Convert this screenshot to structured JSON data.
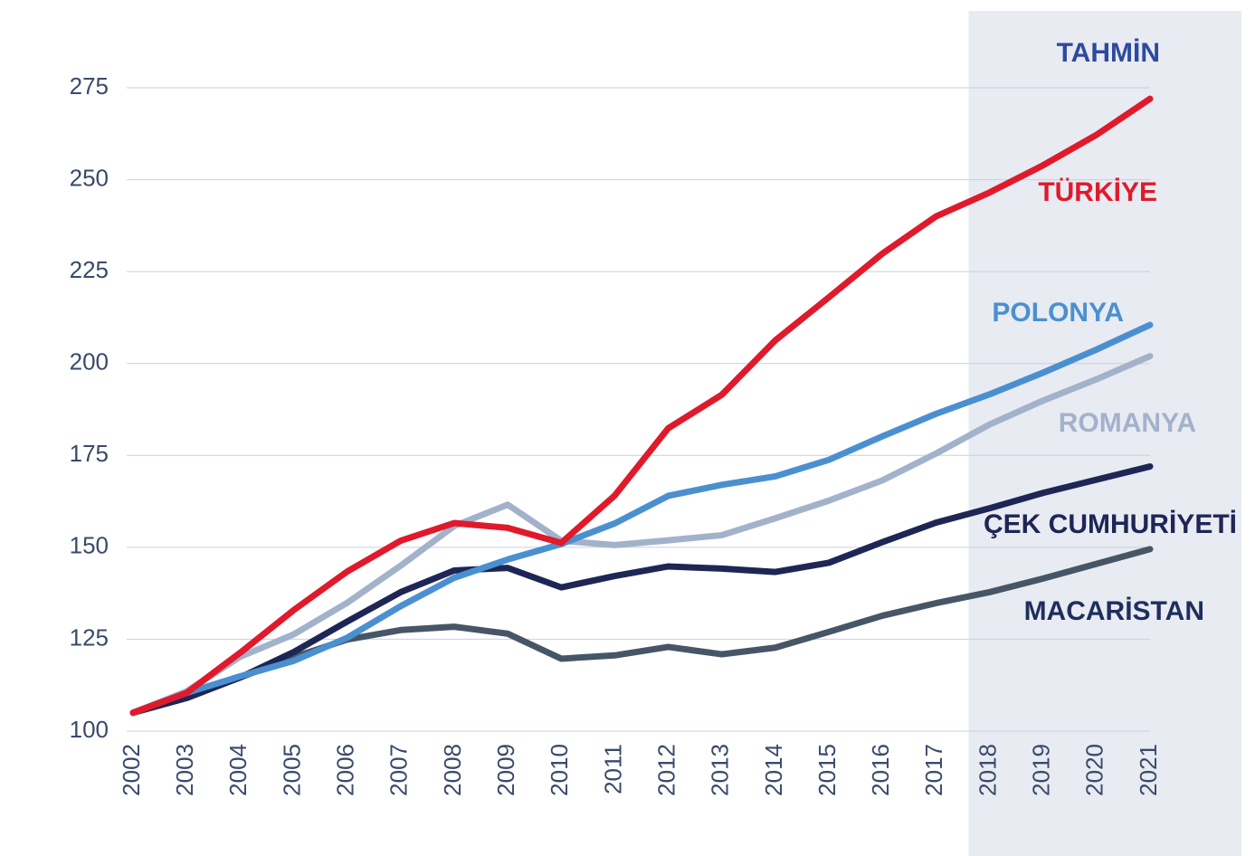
{
  "chart_data": {
    "type": "line",
    "categories": [
      "2002",
      "2003",
      "2004",
      "2005",
      "2006",
      "2007",
      "2008",
      "2009",
      "2010",
      "2011",
      "2012",
      "2013",
      "2014",
      "2015",
      "2016",
      "2017",
      "2018",
      "2019",
      "2020",
      "2021"
    ],
    "forecast_label": "TAHMİN",
    "forecast_from": "2018",
    "forecast_color": "#e8ebf2",
    "ylim": [
      100,
      275
    ],
    "yticks": [
      100,
      125,
      150,
      175,
      200,
      225,
      250,
      275
    ],
    "grid": true,
    "series": [
      {
        "name": "TÜRKİYE",
        "color": "#e01a2b",
        "values": [
          105,
          110.4,
          121.3,
          132.9,
          143.4,
          151.8,
          156.6,
          155.3,
          151.2,
          164.1,
          182.4,
          191.5,
          206.3,
          218,
          229.9,
          240,
          246.5,
          253.9,
          262.2,
          272
        ]
      },
      {
        "name": "POLONYA",
        "color": "#4a90d0",
        "values": [
          105,
          110.4,
          114.9,
          119.1,
          125.4,
          134,
          141.7,
          146.7,
          150.9,
          156.5,
          164,
          167,
          169.3,
          173.8,
          180.2,
          186.3,
          191.6,
          197.5,
          203.8,
          210.5
        ]
      },
      {
        "name": "ROMANYA",
        "color": "#a3b2cb",
        "values": [
          105,
          110.8,
          120.2,
          126.3,
          134.9,
          145,
          155.8,
          161.6,
          151.8,
          150.6,
          151.9,
          153.3,
          157.9,
          162.7,
          168.2,
          175.5,
          183.4,
          189.9,
          195.7,
          202
        ]
      },
      {
        "name": "ÇEK CUMHURİYETİ",
        "color": "#1e2655",
        "values": [
          105,
          109,
          114.6,
          121.5,
          129.8,
          137.8,
          143.7,
          144.4,
          139.1,
          142.2,
          144.8,
          144.2,
          143.3,
          145.8,
          151.4,
          156.7,
          160.6,
          164.8,
          168.4,
          172
        ]
      },
      {
        "name": "MACARİSTAN",
        "color": "#465666",
        "values": [
          105,
          109,
          114.6,
          120.1,
          124.9,
          127.5,
          128.4,
          126.5,
          119.7,
          120.6,
          122.9,
          120.9,
          122.7,
          127,
          131.4,
          134.8,
          137.8,
          141.5,
          145.5,
          149.5
        ]
      }
    ]
  }
}
